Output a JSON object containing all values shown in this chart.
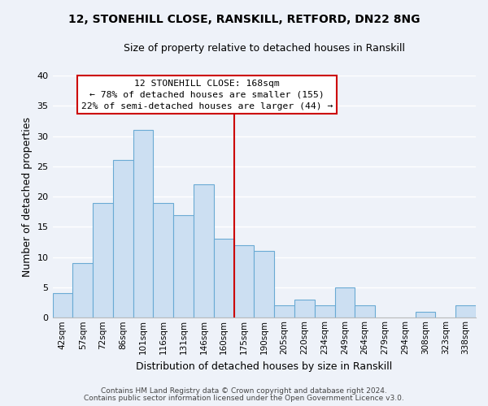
{
  "title1": "12, STONEHILL CLOSE, RANSKILL, RETFORD, DN22 8NG",
  "title2": "Size of property relative to detached houses in Ranskill",
  "xlabel": "Distribution of detached houses by size in Ranskill",
  "ylabel": "Number of detached properties",
  "bin_labels": [
    "42sqm",
    "57sqm",
    "72sqm",
    "86sqm",
    "101sqm",
    "116sqm",
    "131sqm",
    "146sqm",
    "160sqm",
    "175sqm",
    "190sqm",
    "205sqm",
    "220sqm",
    "234sqm",
    "249sqm",
    "264sqm",
    "279sqm",
    "294sqm",
    "308sqm",
    "323sqm",
    "338sqm"
  ],
  "bar_values": [
    4,
    9,
    19,
    26,
    31,
    19,
    17,
    22,
    13,
    12,
    11,
    2,
    3,
    2,
    5,
    2,
    0,
    0,
    1,
    0,
    2
  ],
  "bar_color": "#ccdff2",
  "bar_edge_color": "#6aaad4",
  "vline_x": 8.5,
  "vline_color": "#cc0000",
  "annotation_line1": "12 STONEHILL CLOSE: 168sqm",
  "annotation_line2": "← 78% of detached houses are smaller (155)",
  "annotation_line3": "22% of semi-detached houses are larger (44) →",
  "annotation_box_edge_color": "#cc0000",
  "ylim": [
    0,
    40
  ],
  "yticks": [
    0,
    5,
    10,
    15,
    20,
    25,
    30,
    35,
    40
  ],
  "footer1": "Contains HM Land Registry data © Crown copyright and database right 2024.",
  "footer2": "Contains public sector information licensed under the Open Government Licence v3.0.",
  "background_color": "#eef2f9",
  "grid_color": "#ffffff"
}
